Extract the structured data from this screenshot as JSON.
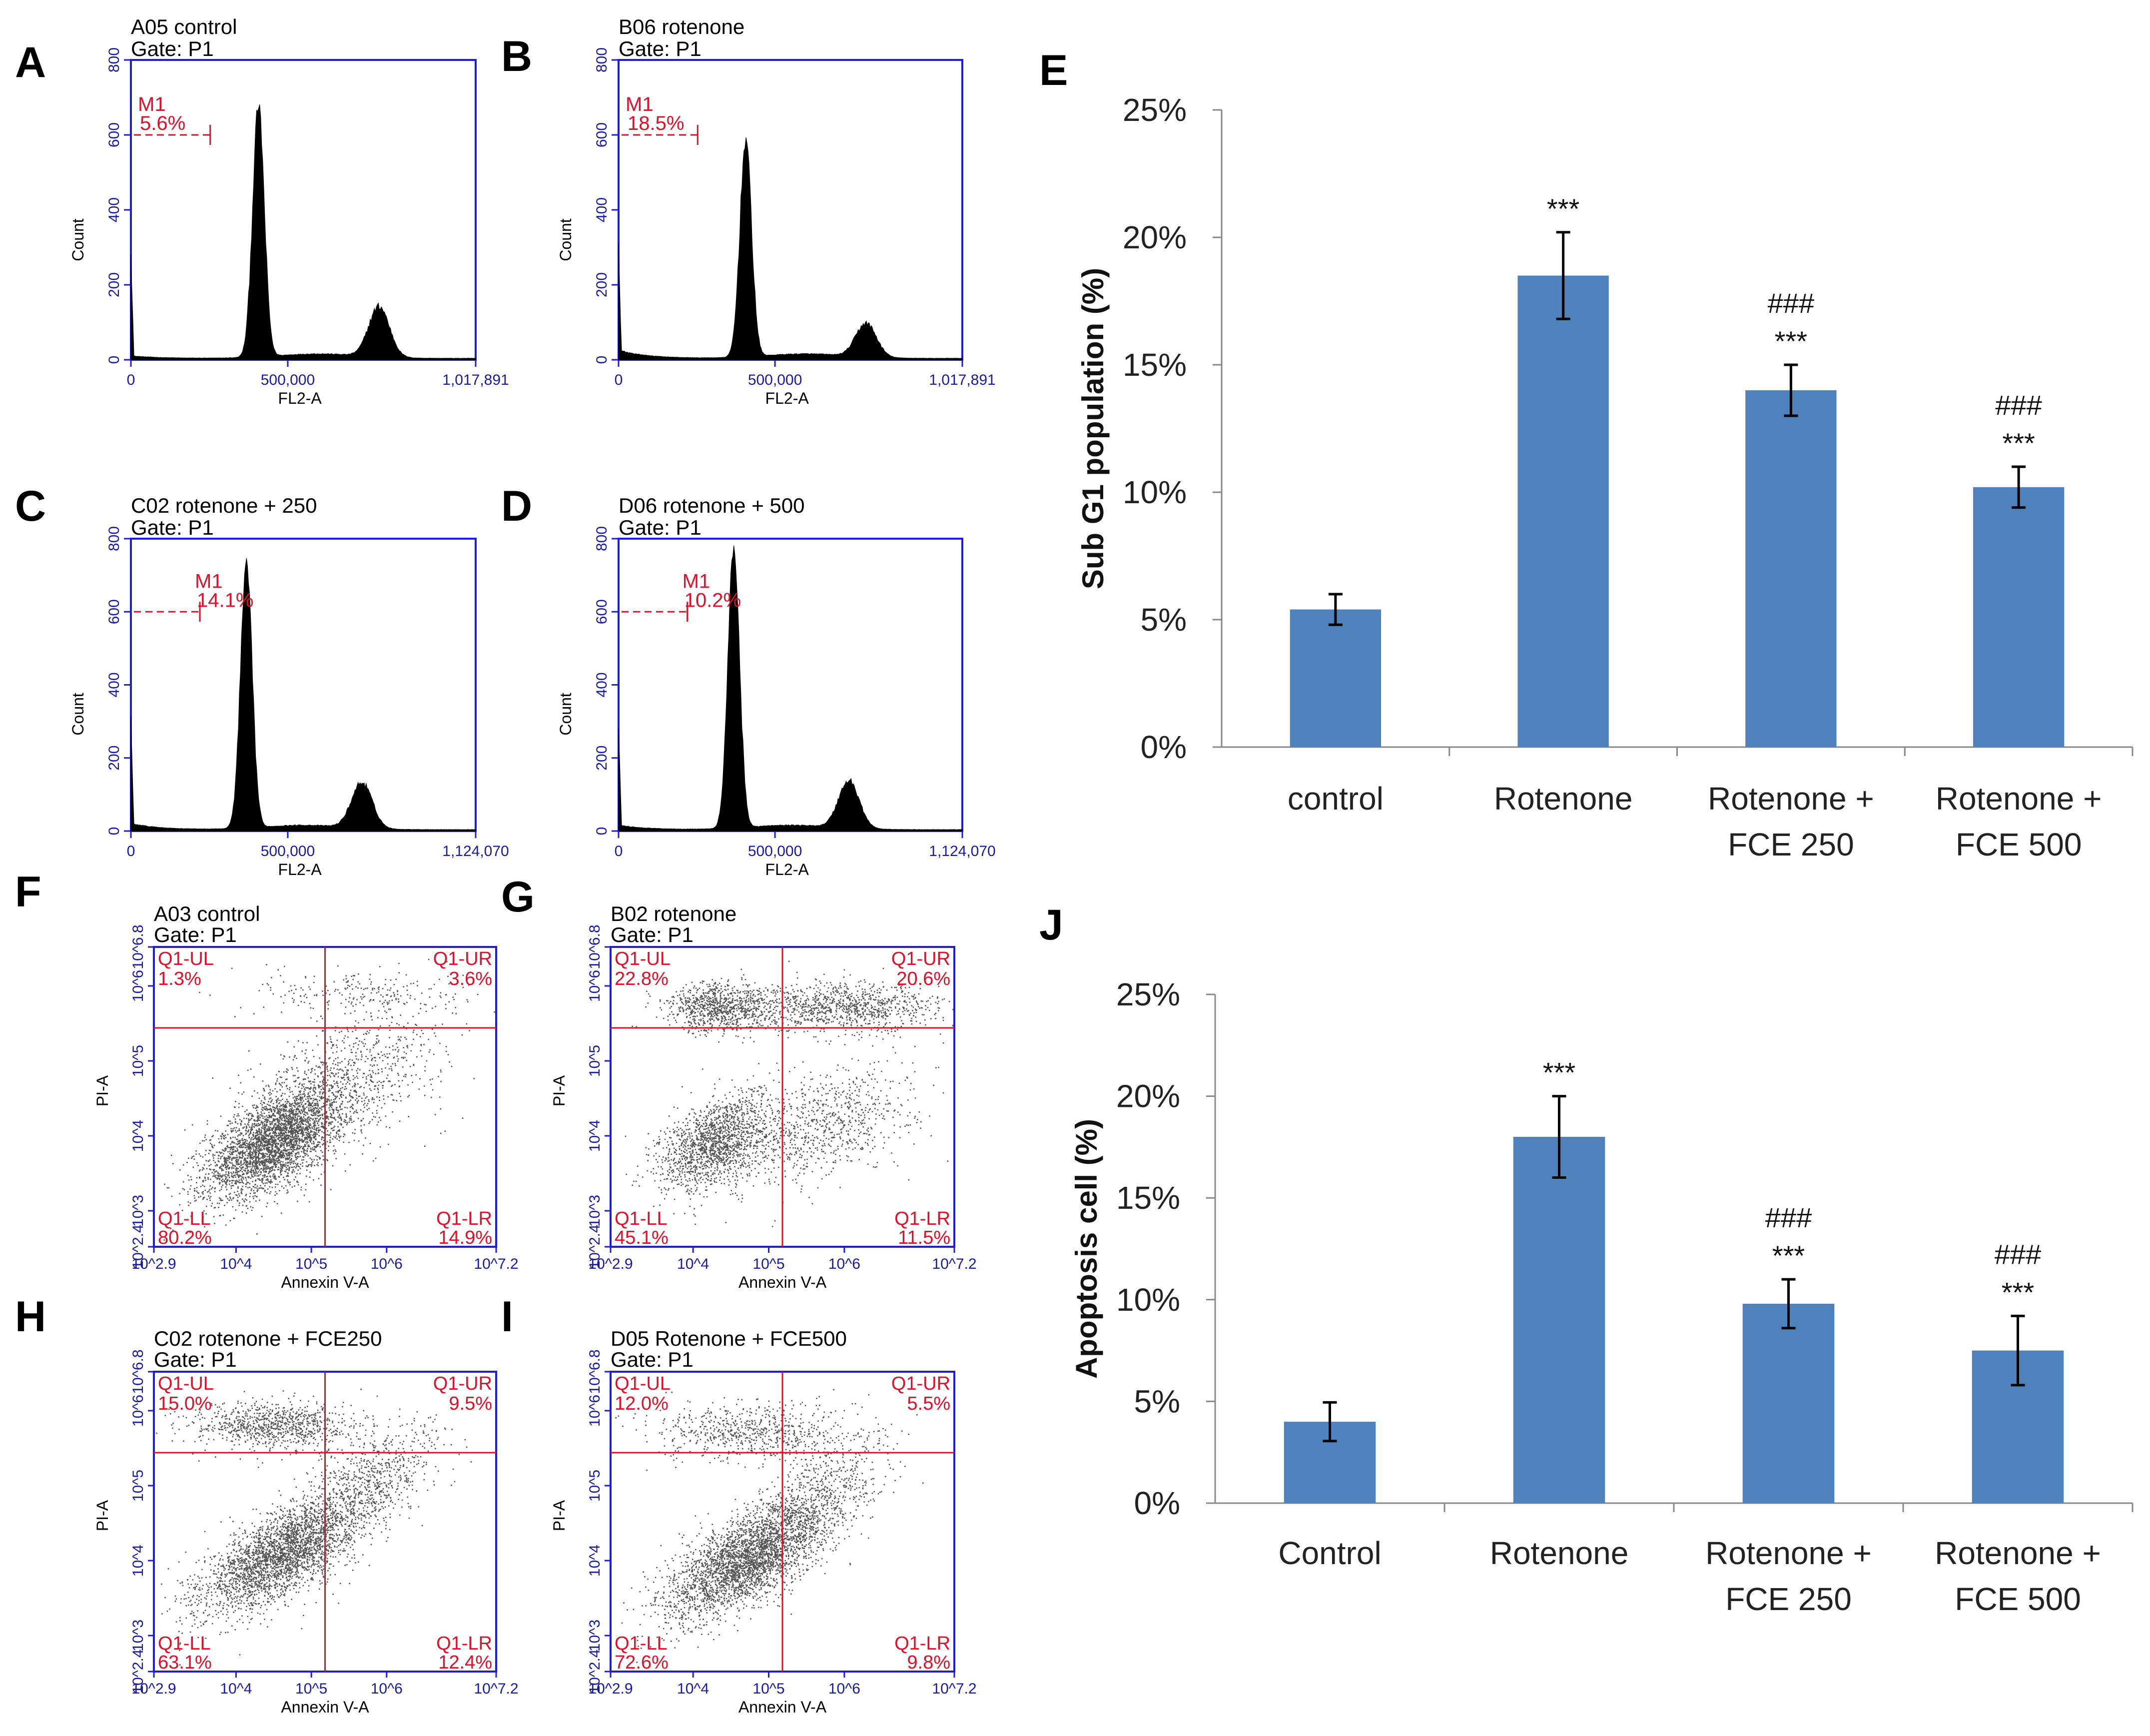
{
  "panel_letters": {
    "A": "A",
    "B": "B",
    "C": "C",
    "D": "D",
    "E": "E",
    "F": "F",
    "G": "G",
    "H": "H",
    "I": "I",
    "J": "J"
  },
  "colors": {
    "bar": "#4f81bd",
    "frame": "#1f1fd0",
    "marker": "#e0102a",
    "hist": "#000000"
  },
  "histograms": [
    {
      "letter": "A",
      "title": "A05 control",
      "gate": "Gate: P1",
      "marker_label": "M1",
      "marker_value": "5.6%",
      "x_ticks": [
        "0",
        "500,000",
        "1,017,891"
      ],
      "y_ticks": [
        "0",
        "200",
        "400",
        "600",
        "800"
      ],
      "xlabel": "FL2-A",
      "ylabel": "Count",
      "g1_height": 670,
      "g2_height": 135,
      "marker_level": 600,
      "sub_g1": 5.6
    },
    {
      "letter": "B",
      "title": "B06 rotenone",
      "gate": "Gate: P1",
      "marker_label": "M1",
      "marker_value": "18.5%",
      "x_ticks": [
        "0",
        "500,000",
        "1,017,891"
      ],
      "y_ticks": [
        "0",
        "200",
        "400",
        "600",
        "800"
      ],
      "xlabel": "FL2-A",
      "ylabel": "Count",
      "g1_height": 580,
      "g2_height": 90,
      "marker_level": 600,
      "sub_g1": 18.5
    },
    {
      "letter": "C",
      "title": "C02 rotenone + 250",
      "gate": "Gate: P1",
      "marker_label": "M1",
      "marker_value": "14.1%",
      "x_ticks": [
        "0",
        "500,000",
        "1,124,070"
      ],
      "y_ticks": [
        "0",
        "200",
        "400",
        "600",
        "800"
      ],
      "xlabel": "FL2-A",
      "ylabel": "Count",
      "g1_height": 720,
      "g2_height": 125,
      "marker_level": 600,
      "sub_g1": 14.1
    },
    {
      "letter": "D",
      "title": "D06 rotenone + 500",
      "gate": "Gate: P1",
      "marker_label": "M1",
      "marker_value": "10.2%",
      "x_ticks": [
        "0",
        "500,000",
        "1,124,070"
      ],
      "y_ticks": [
        "0",
        "200",
        "400",
        "600",
        "800"
      ],
      "xlabel": "FL2-A",
      "ylabel": "Count",
      "g1_height": 770,
      "g2_height": 130,
      "marker_level": 600,
      "sub_g1": 10.2
    }
  ],
  "dotplots": [
    {
      "letter": "F",
      "title": "A03 control",
      "gate": "Gate: P1",
      "ul_name": "Q1-UL",
      "ul": "1.3%",
      "ur_name": "Q1-UR",
      "ur": "3.6%",
      "ll_name": "Q1-LL",
      "ll": "80.2%",
      "lr_name": "Q1-LR",
      "lr": "14.9%",
      "xlabel": "Annexin V-A",
      "ylabel": "PI-A",
      "x_ticks": [
        "10^2.9",
        "10^4",
        "10^5",
        "10^6",
        "10^7.2"
      ],
      "y_ticks": [
        "10^2.4",
        "10^3",
        "10^4",
        "10^5",
        "10^6",
        "10^6.8"
      ]
    },
    {
      "letter": "G",
      "title": "B02 rotenone",
      "gate": "Gate: P1",
      "ul_name": "Q1-UL",
      "ul": "22.8%",
      "ur_name": "Q1-UR",
      "ur": "20.6%",
      "ll_name": "Q1-LL",
      "ll": "45.1%",
      "lr_name": "Q1-LR",
      "lr": "11.5%",
      "xlabel": "Annexin V-A",
      "ylabel": "PI-A",
      "x_ticks": [
        "10^2.9",
        "10^4",
        "10^5",
        "10^6",
        "10^7.2"
      ],
      "y_ticks": [
        "10^2.4",
        "10^3",
        "10^4",
        "10^5",
        "10^6",
        "10^6.8"
      ]
    },
    {
      "letter": "H",
      "title": "C02 rotenone + FCE250",
      "gate": "Gate: P1",
      "ul_name": "Q1-UL",
      "ul": "15.0%",
      "ur_name": "Q1-UR",
      "ur": "9.5%",
      "ll_name": "Q1-LL",
      "ll": "63.1%",
      "lr_name": "Q1-LR",
      "lr": "12.4%",
      "xlabel": "Annexin V-A",
      "ylabel": "PI-A",
      "x_ticks": [
        "10^2.9",
        "10^4",
        "10^5",
        "10^6",
        "10^7.2"
      ],
      "y_ticks": [
        "10^2.4",
        "10^3",
        "10^4",
        "10^5",
        "10^6",
        "10^6.8"
      ]
    },
    {
      "letter": "I",
      "title": "D05 Rotenone + FCE500",
      "gate": "Gate: P1",
      "ul_name": "Q1-UL",
      "ul": "12.0%",
      "ur_name": "Q1-UR",
      "ur": "5.5%",
      "ll_name": "Q1-LL",
      "ll": "72.6%",
      "lr_name": "Q1-LR",
      "lr": "9.8%",
      "xlabel": "Annexin V-A",
      "ylabel": "PI-A",
      "x_ticks": [
        "10^2.9",
        "10^4",
        "10^5",
        "10^6",
        "10^7.2"
      ],
      "y_ticks": [
        "10^2.4",
        "10^3",
        "10^4",
        "10^5",
        "10^6",
        "10^6.8"
      ]
    }
  ],
  "chart_data": [
    {
      "type": "bar",
      "letter": "E",
      "title": "",
      "xlabel": "",
      "ylabel": "Sub G1 population (%)",
      "categories": [
        "control",
        "Rotenone",
        "Rotenone + FCE 250",
        "Rotenone + FCE 500"
      ],
      "category_lines": [
        [
          "control"
        ],
        [
          "Rotenone"
        ],
        [
          "Rotenone +",
          "FCE 250"
        ],
        [
          "Rotenone +",
          "FCE 500"
        ]
      ],
      "values": [
        5.4,
        18.5,
        14.0,
        10.2
      ],
      "errors": [
        0.6,
        1.7,
        1.0,
        0.8
      ],
      "significance": [
        [],
        [
          "***"
        ],
        [
          "###",
          "***"
        ],
        [
          "###",
          "***"
        ]
      ],
      "ylim": [
        0,
        25
      ],
      "y_ticks": [
        "0%",
        "5%",
        "10%",
        "15%",
        "20%",
        "25%"
      ]
    },
    {
      "type": "bar",
      "letter": "J",
      "title": "",
      "xlabel": "",
      "ylabel": "Apoptosis cell (%)",
      "categories": [
        "Control",
        "Rotenone",
        "Rotenone + FCE 250",
        "Rotenone + FCE 500"
      ],
      "category_lines": [
        [
          "Control"
        ],
        [
          "Rotenone"
        ],
        [
          "Rotenone +",
          "FCE 250"
        ],
        [
          "Rotenone +",
          "FCE 500"
        ]
      ],
      "values": [
        4.0,
        18.0,
        9.8,
        7.5
      ],
      "errors": [
        0.95,
        2.0,
        1.2,
        1.7
      ],
      "significance": [
        [],
        [
          "***"
        ],
        [
          "###",
          "***"
        ],
        [
          "###",
          "***"
        ]
      ],
      "ylim": [
        0,
        25
      ],
      "y_ticks": [
        "0%",
        "5%",
        "10%",
        "15%",
        "20%",
        "25%"
      ]
    }
  ]
}
